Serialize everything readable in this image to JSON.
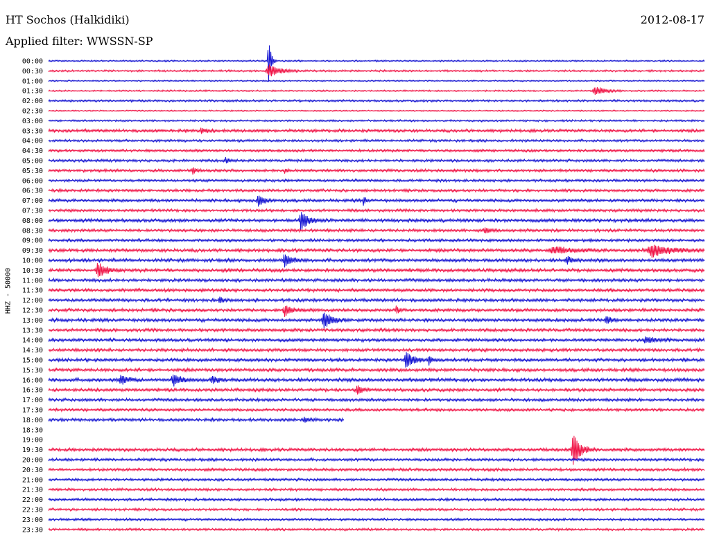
{
  "header": {
    "station": "HT Sochos (Halkidiki)",
    "date": "2012-08-17",
    "filter": "Applied filter: WWSSN-SP"
  },
  "colors": {
    "trace_a": "#1414d2",
    "trace_b": "#f01446",
    "background": "#ffffff",
    "text": "#000000"
  },
  "chart_data": {
    "type": "line",
    "title": "HT Sochos (Halkidiki)",
    "ylabel": "HHZ - 50000",
    "xlabel": "",
    "grid": false,
    "legend": "none",
    "rows": [
      {
        "label": "00:00",
        "color": "trace_a",
        "base": 1.0
      },
      {
        "label": "00:30",
        "color": "trace_b",
        "base": 1.2
      },
      {
        "label": "01:00",
        "color": "trace_a",
        "base": 0.9
      },
      {
        "label": "01:30",
        "color": "trace_b",
        "base": 1.0
      },
      {
        "label": "02:00",
        "color": "trace_a",
        "base": 1.3
      },
      {
        "label": "02:30",
        "color": "trace_b",
        "base": 0.8
      },
      {
        "label": "03:00",
        "color": "trace_a",
        "base": 1.2
      },
      {
        "label": "03:30",
        "color": "trace_b",
        "base": 1.8
      },
      {
        "label": "04:00",
        "color": "trace_a",
        "base": 1.5
      },
      {
        "label": "04:30",
        "color": "trace_b",
        "base": 1.6
      },
      {
        "label": "05:00",
        "color": "trace_a",
        "base": 1.6
      },
      {
        "label": "05:30",
        "color": "trace_b",
        "base": 1.7
      },
      {
        "label": "06:00",
        "color": "trace_a",
        "base": 1.6
      },
      {
        "label": "06:30",
        "color": "trace_b",
        "base": 1.7
      },
      {
        "label": "07:00",
        "color": "trace_a",
        "base": 1.8
      },
      {
        "label": "07:30",
        "color": "trace_b",
        "base": 1.7
      },
      {
        "label": "08:00",
        "color": "trace_a",
        "base": 2.0
      },
      {
        "label": "08:30",
        "color": "trace_b",
        "base": 1.8
      },
      {
        "label": "09:00",
        "color": "trace_a",
        "base": 1.7
      },
      {
        "label": "09:30",
        "color": "trace_b",
        "base": 2.0
      },
      {
        "label": "10:00",
        "color": "trace_a",
        "base": 2.0
      },
      {
        "label": "10:30",
        "color": "trace_b",
        "base": 2.0
      },
      {
        "label": "11:00",
        "color": "trace_a",
        "base": 1.9
      },
      {
        "label": "11:30",
        "color": "trace_b",
        "base": 1.9
      },
      {
        "label": "12:00",
        "color": "trace_a",
        "base": 1.9
      },
      {
        "label": "12:30",
        "color": "trace_b",
        "base": 1.9
      },
      {
        "label": "13:00",
        "color": "trace_a",
        "base": 2.0
      },
      {
        "label": "13:30",
        "color": "trace_b",
        "base": 1.9
      },
      {
        "label": "14:00",
        "color": "trace_a",
        "base": 1.9
      },
      {
        "label": "14:30",
        "color": "trace_b",
        "base": 1.9
      },
      {
        "label": "15:00",
        "color": "trace_a",
        "base": 1.9
      },
      {
        "label": "15:30",
        "color": "trace_b",
        "base": 2.0
      },
      {
        "label": "16:00",
        "color": "trace_a",
        "base": 2.1
      },
      {
        "label": "16:30",
        "color": "trace_b",
        "base": 1.9
      },
      {
        "label": "17:00",
        "color": "trace_a",
        "base": 1.8
      },
      {
        "label": "17:30",
        "color": "trace_b",
        "base": 1.7
      },
      {
        "label": "18:00",
        "color": "trace_a",
        "base": 1.8,
        "end": 0.45
      },
      {
        "label": "18:30",
        "color": "trace_b",
        "base": 0.0
      },
      {
        "label": "19:00",
        "color": "trace_a",
        "base": 0.0
      },
      {
        "label": "19:30",
        "color": "trace_b",
        "base": 1.9
      },
      {
        "label": "20:00",
        "color": "trace_a",
        "base": 1.7
      },
      {
        "label": "20:30",
        "color": "trace_b",
        "base": 1.7
      },
      {
        "label": "21:00",
        "color": "trace_a",
        "base": 1.6
      },
      {
        "label": "21:30",
        "color": "trace_b",
        "base": 1.6
      },
      {
        "label": "22:00",
        "color": "trace_a",
        "base": 1.6
      },
      {
        "label": "22:30",
        "color": "trace_b",
        "base": 1.5
      },
      {
        "label": "23:00",
        "color": "trace_a",
        "base": 1.5
      },
      {
        "label": "23:30",
        "color": "trace_b",
        "base": 1.4
      }
    ],
    "events": [
      {
        "row": 0,
        "t": 0.335,
        "amp": 40,
        "width": 0.004
      },
      {
        "row": 1,
        "t": 0.336,
        "amp": 9,
        "width": 0.018
      },
      {
        "row": 3,
        "t": 0.833,
        "amp": 7,
        "width": 0.016
      },
      {
        "row": 7,
        "t": 0.233,
        "amp": 5,
        "width": 0.008
      },
      {
        "row": 10,
        "t": 0.27,
        "amp": 4,
        "width": 0.006
      },
      {
        "row": 11,
        "t": 0.22,
        "amp": 5,
        "width": 0.006
      },
      {
        "row": 11,
        "t": 0.36,
        "amp": 4,
        "width": 0.004
      },
      {
        "row": 14,
        "t": 0.32,
        "amp": 9,
        "width": 0.01
      },
      {
        "row": 14,
        "t": 0.48,
        "amp": 8,
        "width": 0.004
      },
      {
        "row": 16,
        "t": 0.385,
        "amp": 14,
        "width": 0.012
      },
      {
        "row": 17,
        "t": 0.665,
        "amp": 5,
        "width": 0.008
      },
      {
        "row": 19,
        "t": 0.77,
        "amp": 5,
        "width": 0.03
      },
      {
        "row": 19,
        "t": 0.92,
        "amp": 9,
        "width": 0.03
      },
      {
        "row": 20,
        "t": 0.36,
        "amp": 10,
        "width": 0.012
      },
      {
        "row": 20,
        "t": 0.79,
        "amp": 6,
        "width": 0.01
      },
      {
        "row": 21,
        "t": 0.075,
        "amp": 12,
        "width": 0.014
      },
      {
        "row": 24,
        "t": 0.26,
        "amp": 5,
        "width": 0.006
      },
      {
        "row": 25,
        "t": 0.36,
        "amp": 9,
        "width": 0.012
      },
      {
        "row": 25,
        "t": 0.53,
        "amp": 7,
        "width": 0.004
      },
      {
        "row": 26,
        "t": 0.42,
        "amp": 12,
        "width": 0.014
      },
      {
        "row": 26,
        "t": 0.85,
        "amp": 5,
        "width": 0.012
      },
      {
        "row": 28,
        "t": 0.91,
        "amp": 5,
        "width": 0.014
      },
      {
        "row": 30,
        "t": 0.545,
        "amp": 14,
        "width": 0.012
      },
      {
        "row": 30,
        "t": 0.58,
        "amp": 8,
        "width": 0.006
      },
      {
        "row": 32,
        "t": 0.11,
        "amp": 7,
        "width": 0.012
      },
      {
        "row": 32,
        "t": 0.19,
        "amp": 9,
        "width": 0.012
      },
      {
        "row": 32,
        "t": 0.25,
        "amp": 6,
        "width": 0.01
      },
      {
        "row": 33,
        "t": 0.47,
        "amp": 7,
        "width": 0.008
      },
      {
        "row": 36,
        "t": 0.39,
        "amp": 5,
        "width": 0.008
      },
      {
        "row": 39,
        "t": 0.8,
        "amp": 24,
        "width": 0.012
      }
    ]
  }
}
